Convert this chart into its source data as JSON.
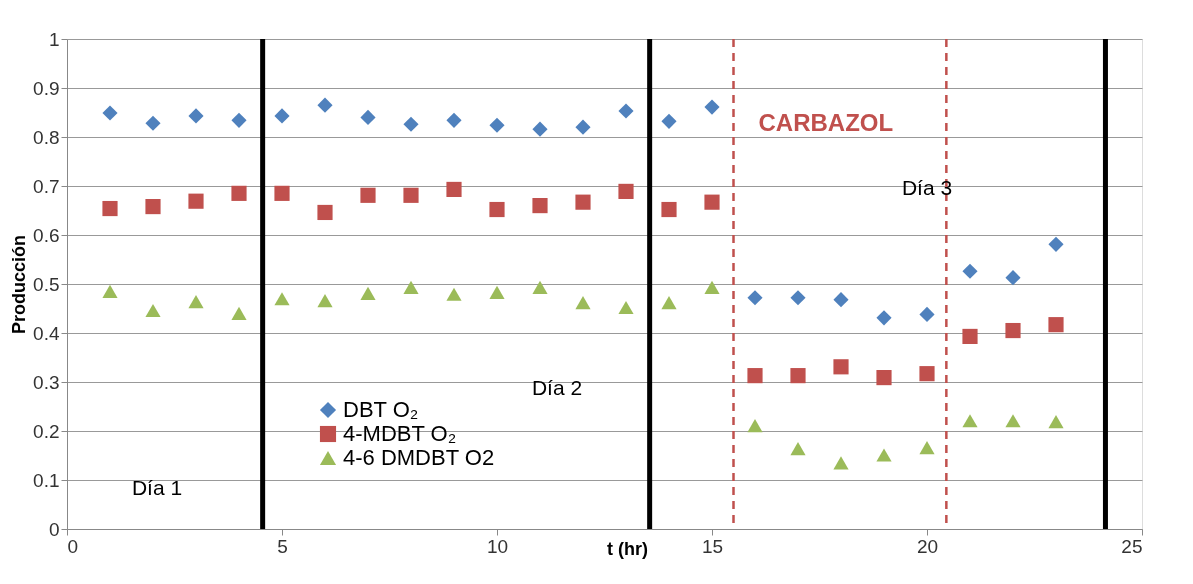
{
  "chart_data": {
    "type": "scatter",
    "xlabel": "t (hr)",
    "ylabel": "Producción",
    "xlim": [
      0,
      25
    ],
    "xticks": [
      0,
      5,
      10,
      15,
      20,
      25
    ],
    "ylim": [
      0,
      1
    ],
    "yticks": [
      0,
      0.1,
      0.2,
      0.3,
      0.4,
      0.5,
      0.6,
      0.7,
      0.8,
      0.9,
      1
    ],
    "grid": "y",
    "legend": "bottom left",
    "x": [
      1,
      2,
      3,
      4,
      5,
      6,
      7,
      8,
      9,
      10,
      11,
      12,
      13,
      14,
      15,
      16,
      17,
      18,
      19,
      20,
      21,
      22,
      23
    ],
    "series": [
      {
        "name": "DBT O₂",
        "color": "#4f81bd",
        "marker": "diamond",
        "values": [
          0.849,
          0.828,
          0.843,
          0.834,
          0.843,
          0.865,
          0.84,
          0.826,
          0.834,
          0.824,
          0.816,
          0.82,
          0.853,
          0.832,
          0.861,
          0.472,
          0.472,
          0.468,
          0.431,
          0.438,
          0.526,
          0.513,
          0.581
        ]
      },
      {
        "name": "4-MDBT O₂",
        "color": "#c0504d",
        "marker": "square",
        "values": [
          0.654,
          0.658,
          0.669,
          0.685,
          0.685,
          0.646,
          0.681,
          0.681,
          0.693,
          0.652,
          0.66,
          0.667,
          0.689,
          0.652,
          0.667,
          0.313,
          0.313,
          0.331,
          0.309,
          0.317,
          0.393,
          0.405,
          0.417
        ]
      },
      {
        "name": "4-6 DMDBT O2",
        "color": "#9bbb59",
        "marker": "triangle",
        "values": [
          0.485,
          0.446,
          0.464,
          0.44,
          0.47,
          0.466,
          0.481,
          0.493,
          0.479,
          0.483,
          0.493,
          0.462,
          0.452,
          0.462,
          0.493,
          0.211,
          0.164,
          0.135,
          0.151,
          0.166,
          0.221,
          0.221,
          0.219
        ]
      }
    ],
    "ref_lines": [
      {
        "axis": "x",
        "value": 4.55,
        "color": "#000000",
        "line_style": "solid"
      },
      {
        "axis": "x",
        "value": 13.55,
        "color": "#000000",
        "line_style": "solid"
      },
      {
        "axis": "x",
        "value": 24.15,
        "color": "#000000",
        "line_style": "solid"
      },
      {
        "axis": "x",
        "value": 15.5,
        "color": "#c0504d",
        "line_style": "dashed",
        "label": "CARBAZOL"
      },
      {
        "axis": "x",
        "value": 20.45,
        "color": "#c0504d",
        "line_style": "dashed"
      }
    ],
    "annotations": [
      "Día 1",
      "Día 2",
      "Día 3"
    ]
  }
}
